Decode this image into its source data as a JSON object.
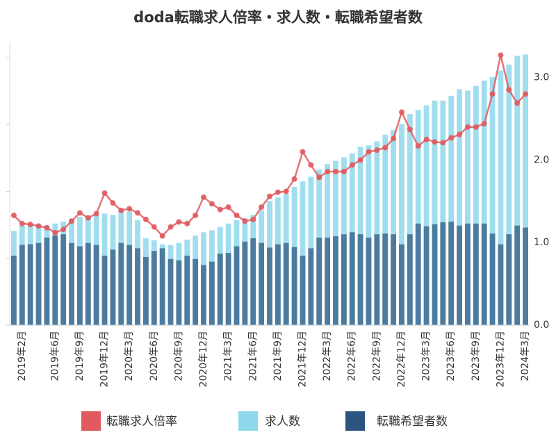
{
  "chart_data": {
    "type": "bar",
    "title": "doda転職求人倍率・求人数・転職希望者数",
    "categories": [
      null,
      "2019年2月",
      null,
      null,
      null,
      "2019年6月",
      null,
      null,
      "2019年9月",
      null,
      null,
      "2019年12月",
      null,
      null,
      "2020年3月",
      null,
      null,
      "2020年6月",
      null,
      null,
      "2020年9月",
      null,
      null,
      "2020年12月",
      null,
      null,
      "2021年3月",
      null,
      null,
      "2021年6月",
      null,
      null,
      "2021年9月",
      null,
      null,
      "2021年12月",
      null,
      null,
      "2022年3月",
      null,
      null,
      "2022年6月",
      null,
      null,
      "2022年9月",
      null,
      null,
      "2022年12月",
      null,
      null,
      "2023年3月",
      null,
      null,
      "2023年6月",
      null,
      null,
      "2023年9月",
      null,
      null,
      "2023年12月",
      null,
      null,
      "2024年3月"
    ],
    "series": [
      {
        "name": "転職求人倍率",
        "type": "line",
        "axis": "y2",
        "color": "#e05a5f",
        "values": [
          1.33,
          1.23,
          1.22,
          1.2,
          1.18,
          1.12,
          1.16,
          1.26,
          1.36,
          1.3,
          1.35,
          1.6,
          1.48,
          1.39,
          1.41,
          1.36,
          1.28,
          1.19,
          1.08,
          1.19,
          1.25,
          1.23,
          1.33,
          1.55,
          1.47,
          1.4,
          1.43,
          1.33,
          1.26,
          1.28,
          1.43,
          1.56,
          1.61,
          1.62,
          1.77,
          2.1,
          1.94,
          1.79,
          1.86,
          1.86,
          1.86,
          1.94,
          2.0,
          2.1,
          2.12,
          2.15,
          2.26,
          2.58,
          2.37,
          2.17,
          2.25,
          2.22,
          2.21,
          2.27,
          2.31,
          2.4,
          2.4,
          2.44,
          2.8,
          3.27,
          2.85,
          2.69,
          2.8
        ]
      },
      {
        "name": "求人数",
        "type": "bar",
        "color": "#8fd8ec",
        "values": [
          1.41,
          1.49,
          1.51,
          1.51,
          1.49,
          1.52,
          1.55,
          1.59,
          1.62,
          1.61,
          1.65,
          1.67,
          1.65,
          1.7,
          1.7,
          1.57,
          1.3,
          1.27,
          1.21,
          1.2,
          1.23,
          1.28,
          1.34,
          1.39,
          1.42,
          1.47,
          1.52,
          1.57,
          1.6,
          1.65,
          1.72,
          1.86,
          1.91,
          1.96,
          2.07,
          2.15,
          2.22,
          2.33,
          2.41,
          2.46,
          2.51,
          2.57,
          2.67,
          2.69,
          2.75,
          2.85,
          2.92,
          3.01,
          3.16,
          3.22,
          3.29,
          3.36,
          3.36,
          3.43,
          3.53,
          3.51,
          3.58,
          3.66,
          3.71,
          3.81,
          3.9,
          4.03,
          4.05
        ]
      },
      {
        "name": "転職希望者数",
        "type": "bar",
        "color": "#2b5580",
        "values": [
          1.04,
          1.2,
          1.21,
          1.23,
          1.31,
          1.34,
          1.36,
          1.23,
          1.18,
          1.23,
          1.2,
          1.04,
          1.13,
          1.23,
          1.2,
          1.15,
          1.02,
          1.11,
          1.15,
          0.99,
          0.97,
          1.04,
          0.99,
          0.9,
          0.95,
          1.07,
          1.08,
          1.18,
          1.25,
          1.3,
          1.23,
          1.16,
          1.21,
          1.23,
          1.17,
          1.04,
          1.15,
          1.31,
          1.31,
          1.33,
          1.36,
          1.39,
          1.36,
          1.31,
          1.36,
          1.37,
          1.36,
          1.21,
          1.36,
          1.52,
          1.48,
          1.51,
          1.54,
          1.55,
          1.49,
          1.52,
          1.52,
          1.52,
          1.37,
          1.21,
          1.36,
          1.49,
          1.46
        ]
      }
    ],
    "ylim": [
      0,
      4.2
    ],
    "yticks": [
      0,
      1,
      2,
      3,
      4
    ],
    "y2lim": [
      0,
      3.4
    ],
    "y2ticks": [
      {
        "value": 0,
        "label": "0.0"
      },
      {
        "value": 1,
        "label": "1.0"
      },
      {
        "value": 2,
        "label": "2.0"
      },
      {
        "value": 3,
        "label": "3.0"
      }
    ]
  }
}
